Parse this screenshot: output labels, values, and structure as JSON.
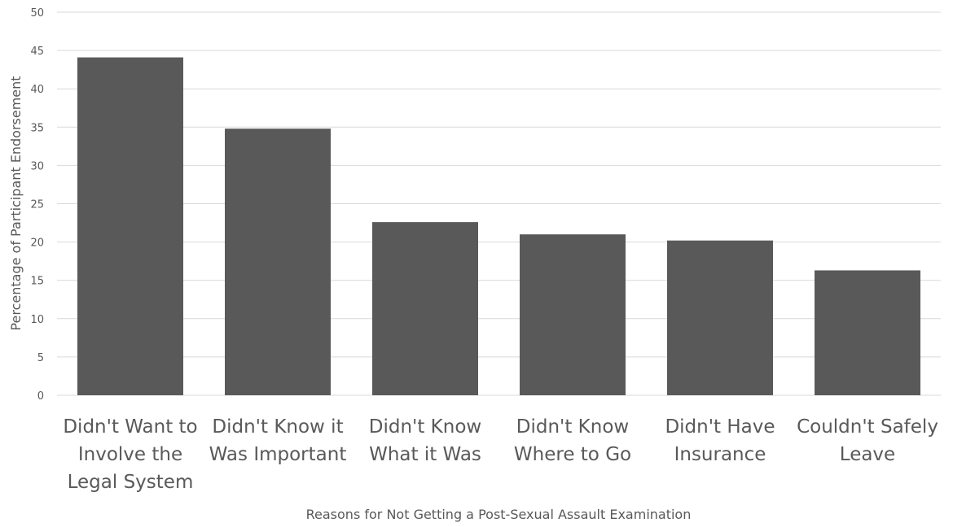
{
  "chart_data": {
    "type": "bar",
    "title": "",
    "xlabel": "Reasons for Not Getting a Post-Sexual Assault Examination",
    "ylabel": "Percentage of Participant Endorsement",
    "categories": [
      [
        "Didn't Want to",
        "Involve the",
        "Legal System"
      ],
      [
        "Didn't Know it",
        "Was Important"
      ],
      [
        "Didn't Know",
        "What it Was"
      ],
      [
        "Didn't Know",
        "Where to Go"
      ],
      [
        "Didn't Have",
        "Insurance"
      ],
      [
        "Couldn't Safely",
        "Leave"
      ]
    ],
    "values": [
      44.1,
      34.8,
      22.6,
      21.0,
      20.2,
      16.3
    ],
    "ylim": [
      0,
      50
    ],
    "yticks": [
      0,
      5,
      10,
      15,
      20,
      25,
      30,
      35,
      40,
      45,
      50
    ],
    "grid": true,
    "legend": "none",
    "bar_color": "#595959"
  }
}
